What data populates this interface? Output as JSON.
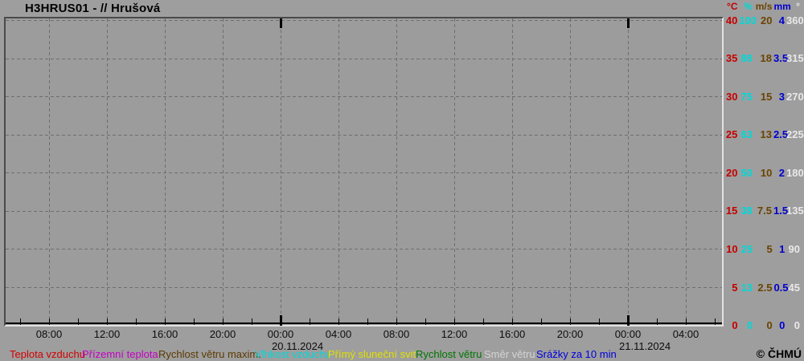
{
  "title": "H3HRUS01 - // Hrušová",
  "footer": {
    "copyright": "© ČHMÚ"
  },
  "chart_data": {
    "type": "line",
    "title": "H3HRUS01 - // Hrušová",
    "grid": "dashed",
    "plot_background": "#9c9c9c",
    "series": [],
    "x": {
      "tick_interval_hours": 2,
      "label_interval_hours": 4,
      "labels": [
        "08:00",
        "12:00",
        "16:00",
        "20:00",
        "00:00",
        "04:00",
        "08:00",
        "12:00",
        "16:00",
        "20:00",
        "00:00",
        "04:00"
      ],
      "date_annotations": [
        {
          "label": "20.11.2024",
          "tick_index": 4
        },
        {
          "label": "21.11.2024",
          "tick_index": 10
        }
      ]
    },
    "right_axes": [
      {
        "unit": "°C",
        "color": "#c40000",
        "ticks": [
          "40",
          "35",
          "30",
          "25",
          "20",
          "15",
          "10",
          "5",
          "0"
        ]
      },
      {
        "unit": "%",
        "color": "#00d8d8",
        "ticks": [
          "100",
          "88",
          "75",
          "63",
          "50",
          "38",
          "25",
          "13",
          "0"
        ]
      },
      {
        "unit": "m/s",
        "color": "#6b4300",
        "ticks": [
          "20",
          "18",
          "15",
          "13",
          "10",
          "7.5",
          "5",
          "2.5",
          "0"
        ]
      },
      {
        "unit": "mm",
        "color": "#0000cf",
        "ticks": [
          "4",
          "3.5",
          "3",
          "2.5",
          "2",
          "1.5",
          "1",
          "0.5",
          "0"
        ]
      },
      {
        "unit": "°",
        "color": "#e8e8e8",
        "ticks": [
          "360",
          "315",
          "270",
          "225",
          "180",
          "135",
          "90",
          "45",
          "0"
        ]
      }
    ]
  },
  "legend": {
    "items": [
      {
        "label": "Teplota vzduchu",
        "color": "#d40000"
      },
      {
        "label": "Přízemní teplota",
        "color": "#c400c4"
      },
      {
        "label": "Rychlost větru maxim.",
        "color": "#5c3a00"
      },
      {
        "label": "Vlhkost vzduchu",
        "color": "#00d8d8"
      },
      {
        "label": "Přímý sluneční svit",
        "color": "#e0e000"
      },
      {
        "label": "Rychlost větru",
        "color": "#007600"
      },
      {
        "label": "Směr větru",
        "color": "#d4d4d4"
      },
      {
        "label": "Srážky za 10 min",
        "color": "#0000dd"
      }
    ]
  }
}
